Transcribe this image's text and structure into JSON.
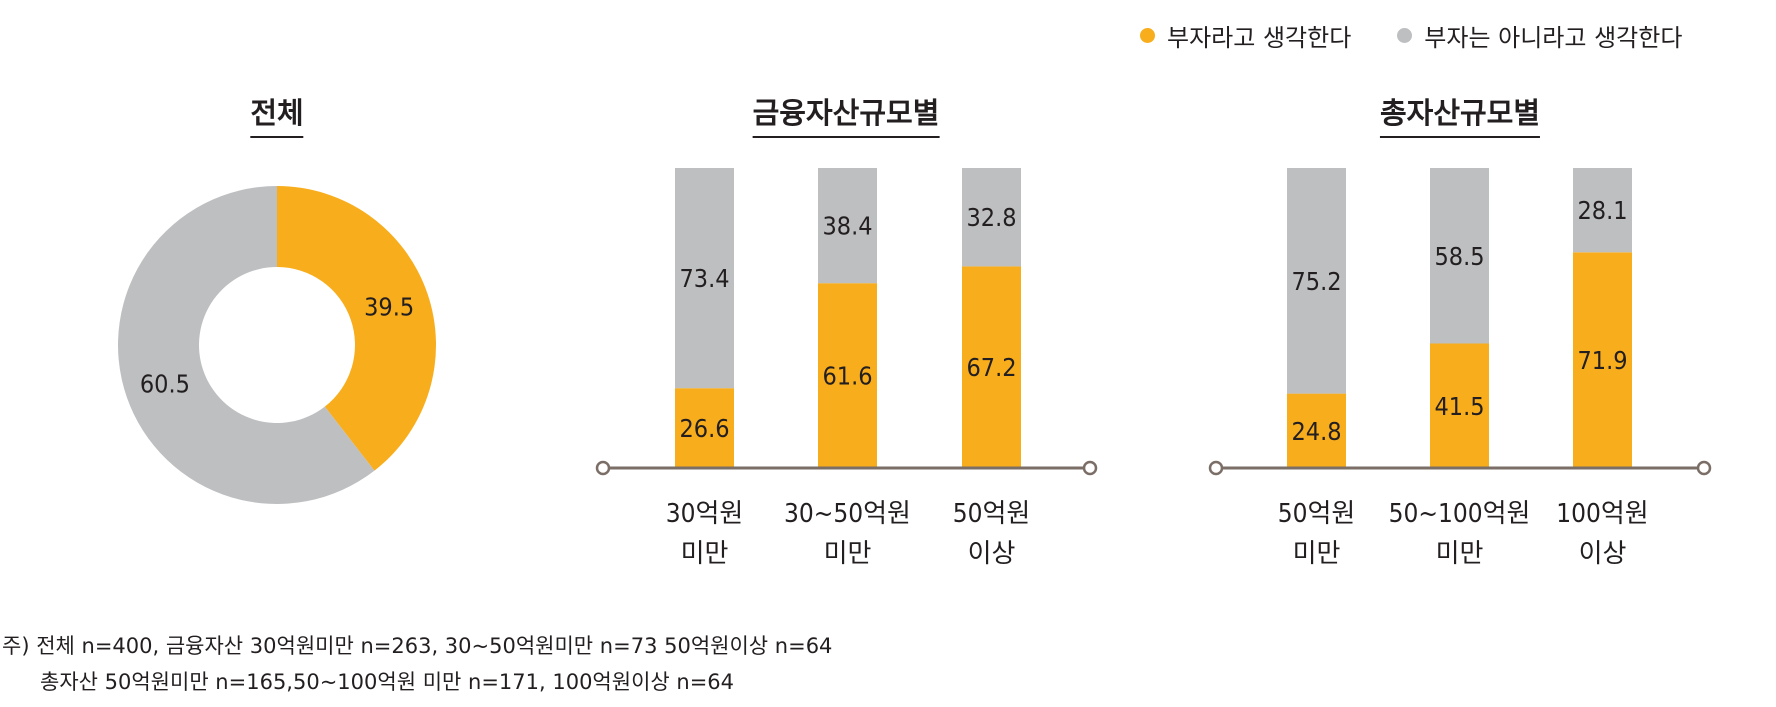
{
  "legend": [
    {
      "label": "부자라고 생각한다",
      "color": "#F8AD1C"
    },
    {
      "label": "부자는 아니라고 생각한다",
      "color": "#BEBFC1"
    }
  ],
  "chart_data": [
    {
      "type": "pie",
      "title": "전체",
      "donut": true,
      "slices": [
        {
          "label": "부자라고 생각한다",
          "value": 39.5,
          "color": "#F8AD1C"
        },
        {
          "label": "부자는 아니라고 생각한다",
          "value": 60.5,
          "color": "#BEBFC1"
        }
      ]
    },
    {
      "type": "bar",
      "stacked": true,
      "title": "금융자산규모별",
      "categories": [
        [
          "30억원",
          "미만"
        ],
        [
          "30~50억원",
          "미만"
        ],
        [
          "50억원",
          "이상"
        ]
      ],
      "series": [
        {
          "name": "부자라고 생각한다",
          "values": [
            26.6,
            61.6,
            67.2
          ],
          "color": "#F8AD1C"
        },
        {
          "name": "부자는 아니라고 생각한다",
          "values": [
            73.4,
            38.4,
            32.8
          ],
          "color": "#BEBFC1"
        }
      ],
      "ylim": [
        0,
        100
      ]
    },
    {
      "type": "bar",
      "stacked": true,
      "title": "총자산규모별",
      "categories": [
        [
          "50억원",
          "미만"
        ],
        [
          "50~100억원",
          "미만"
        ],
        [
          "100억원",
          "이상"
        ]
      ],
      "series": [
        {
          "name": "부자라고 생각한다",
          "values": [
            24.8,
            41.5,
            71.9
          ],
          "color": "#F8AD1C"
        },
        {
          "name": "부자는 아니라고 생각한다",
          "values": [
            75.2,
            58.5,
            28.1
          ],
          "color": "#BEBFC1"
        }
      ],
      "ylim": [
        0,
        100
      ]
    }
  ],
  "notes": [
    "주) 전체 n=400, 금융자산 30억원미만 n=263, 30~50억원미만 n=73 50억원이상 n=64",
    "총자산 50억원미만 n=165,50~100억원 미만 n=171, 100억원이상 n=64"
  ],
  "axis_color": "#7A6E66"
}
